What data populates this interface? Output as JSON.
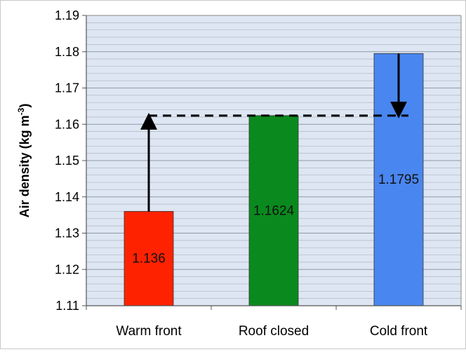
{
  "chart_data": {
    "type": "bar",
    "categories": [
      "Warm front",
      "Roof closed",
      "Cold front"
    ],
    "values": [
      1.136,
      1.1624,
      1.1795
    ],
    "data_labels": [
      "1.136",
      "1.1624",
      "1.1795"
    ],
    "bar_colors": [
      "#ff2200",
      "#0a8a1e",
      "#4a86f0"
    ],
    "ylabel_main": "Air density (kg m",
    "ylabel_sup": "-3",
    "ylabel_close": ")",
    "ylim": [
      1.11,
      1.19
    ],
    "yticks": [
      "1.11",
      "1.12",
      "1.13",
      "1.14",
      "1.15",
      "1.16",
      "1.17",
      "1.18",
      "1.19"
    ],
    "grid": true,
    "plot_background": "#dde6f2",
    "reference_line_value": 1.1624
  }
}
